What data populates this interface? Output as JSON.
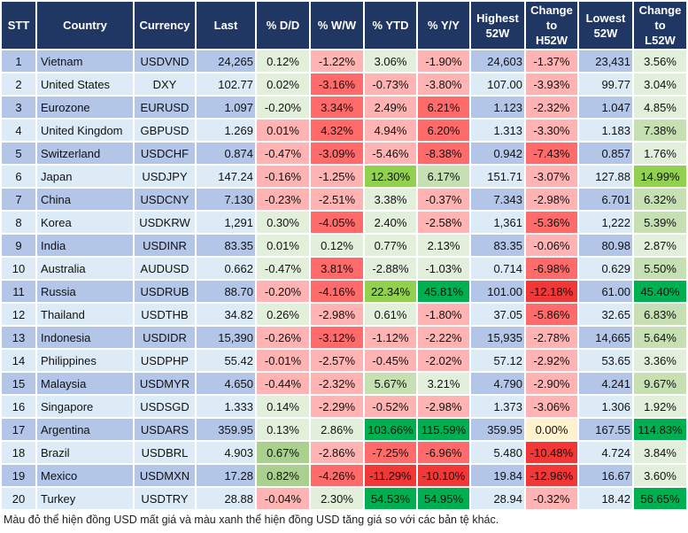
{
  "colors": {
    "header": "#203764",
    "row_odd": "#B4C6E7",
    "row_even": "#DDEBF7",
    "g1": "#E2EFDA",
    "g2": "#C6E0B4",
    "g2b": "#A9D08E",
    "g3": "#92D050",
    "g4": "#00B050",
    "r1": "#FFB3B3",
    "r2": "#FF6B6B",
    "r3": "#F23737",
    "y": "#FFF2CC"
  },
  "headers": [
    [
      "STT"
    ],
    [
      "Country"
    ],
    [
      "Currency"
    ],
    [
      "Last"
    ],
    [
      "% D/D"
    ],
    [
      "% W/W"
    ],
    [
      "% YTD"
    ],
    [
      "% Y/Y"
    ],
    [
      "Highest",
      "52W"
    ],
    [
      "Change",
      "to",
      "H52W"
    ],
    [
      "Lowest",
      "52W"
    ],
    [
      "Change",
      "to",
      "L52W"
    ]
  ],
  "rows": [
    {
      "stt": "1",
      "country": "Vietnam",
      "currency": "USDVND",
      "last": "24,265",
      "dd": "0.12%",
      "ww": "-1.22%",
      "ytd": "3.06%",
      "yy": "-1.90%",
      "high": "24,603",
      "h52": "-1.37%",
      "low": "23,431",
      "l52": "3.56%",
      "colors": [
        "g1",
        "r1",
        "g1",
        "r1",
        "r1",
        "g1"
      ]
    },
    {
      "stt": "2",
      "country": "United States",
      "currency": "DXY",
      "last": "102.77",
      "dd": "0.02%",
      "ww": "-3.16%",
      "ytd": "-0.73%",
      "yy": "-3.80%",
      "high": "107.00",
      "h52": "-3.93%",
      "low": "99.77",
      "l52": "3.04%",
      "colors": [
        "g1",
        "r2",
        "r1",
        "r1",
        "r1",
        "g1"
      ]
    },
    {
      "stt": "3",
      "country": "Eurozone",
      "currency": "EURUSD",
      "last": "1.097",
      "dd": "-0.20%",
      "ww": "3.34%",
      "ytd": "2.49%",
      "yy": "6.21%",
      "high": "1.123",
      "h52": "-2.32%",
      "low": "1.047",
      "l52": "4.85%",
      "colors": [
        "g1",
        "r2",
        "r1",
        "r2",
        "r1",
        "g1"
      ]
    },
    {
      "stt": "4",
      "country": "United Kingdom",
      "currency": "GBPUSD",
      "last": "1.269",
      "dd": "0.01%",
      "ww": "4.32%",
      "ytd": "4.94%",
      "yy": "6.20%",
      "high": "1.313",
      "h52": "-3.30%",
      "low": "1.183",
      "l52": "7.38%",
      "colors": [
        "r1",
        "r2",
        "r1",
        "r2",
        "r1",
        "g2"
      ]
    },
    {
      "stt": "5",
      "country": "Switzerland",
      "currency": "USDCHF",
      "last": "0.874",
      "dd": "-0.47%",
      "ww": "-3.09%",
      "ytd": "-5.46%",
      "yy": "-8.38%",
      "high": "0.942",
      "h52": "-7.43%",
      "low": "0.857",
      "l52": "1.76%",
      "colors": [
        "r1",
        "r2",
        "r1",
        "r2",
        "r2",
        "g1"
      ]
    },
    {
      "stt": "6",
      "country": "Japan",
      "currency": "USDJPY",
      "last": "147.24",
      "dd": "-0.16%",
      "ww": "-1.25%",
      "ytd": "12.30%",
      "yy": "6.17%",
      "high": "151.71",
      "h52": "-3.07%",
      "low": "127.88",
      "l52": "14.99%",
      "colors": [
        "r1",
        "r1",
        "g3",
        "g2",
        "r1",
        "g3"
      ]
    },
    {
      "stt": "7",
      "country": "China",
      "currency": "USDCNY",
      "last": "7.130",
      "dd": "-0.23%",
      "ww": "-2.51%",
      "ytd": "3.38%",
      "yy": "-0.37%",
      "high": "7.343",
      "h52": "-2.98%",
      "low": "6.701",
      "l52": "6.32%",
      "colors": [
        "r1",
        "r1",
        "g1",
        "r1",
        "r1",
        "g2"
      ]
    },
    {
      "stt": "8",
      "country": "Korea",
      "currency": "USDKRW",
      "last": "1,291",
      "dd": "0.30%",
      "ww": "-4.05%",
      "ytd": "2.40%",
      "yy": "-2.58%",
      "high": "1,361",
      "h52": "-5.36%",
      "low": "1,222",
      "l52": "5.39%",
      "colors": [
        "g1",
        "r2",
        "g1",
        "r1",
        "r2",
        "g2"
      ]
    },
    {
      "stt": "9",
      "country": "India",
      "currency": "USDINR",
      "last": "83.35",
      "dd": "0.01%",
      "ww": "0.12%",
      "ytd": "0.77%",
      "yy": "2.13%",
      "high": "83.35",
      "h52": "-0.06%",
      "low": "80.98",
      "l52": "2.87%",
      "colors": [
        "g1",
        "g1",
        "g1",
        "g1",
        "r1",
        "g1"
      ]
    },
    {
      "stt": "10",
      "country": "Australia",
      "currency": "AUDUSD",
      "last": "0.662",
      "dd": "-0.47%",
      "ww": "3.81%",
      "ytd": "-2.88%",
      "yy": "-1.03%",
      "high": "0.714",
      "h52": "-6.98%",
      "low": "0.629",
      "l52": "5.50%",
      "colors": [
        "g1",
        "r2",
        "g1",
        "g1",
        "r2",
        "g2"
      ]
    },
    {
      "stt": "11",
      "country": "Russia",
      "currency": "USDRUB",
      "last": "88.70",
      "dd": "-0.20%",
      "ww": "-4.16%",
      "ytd": "22.34%",
      "yy": "45.81%",
      "high": "101.00",
      "h52": "-12.18%",
      "low": "61.00",
      "l52": "45.40%",
      "colors": [
        "r1",
        "r2",
        "g3",
        "g4",
        "r3",
        "g4"
      ]
    },
    {
      "stt": "12",
      "country": "Thailand",
      "currency": "USDTHB",
      "last": "34.82",
      "dd": "0.26%",
      "ww": "-2.98%",
      "ytd": "0.61%",
      "yy": "-1.80%",
      "high": "37.05",
      "h52": "-5.86%",
      "low": "32.65",
      "l52": "6.83%",
      "colors": [
        "g1",
        "r1",
        "g1",
        "r1",
        "r2",
        "g2"
      ]
    },
    {
      "stt": "13",
      "country": "Indonesia",
      "currency": "USDIDR",
      "last": "15,390",
      "dd": "-0.26%",
      "ww": "-3.12%",
      "ytd": "-1.12%",
      "yy": "-2.22%",
      "high": "15,935",
      "h52": "-2.78%",
      "low": "14,665",
      "l52": "5.64%",
      "colors": [
        "r1",
        "r2",
        "r1",
        "r1",
        "r1",
        "g2"
      ]
    },
    {
      "stt": "14",
      "country": "Philippines",
      "currency": "USDPHP",
      "last": "55.42",
      "dd": "-0.01%",
      "ww": "-2.57%",
      "ytd": "-0.45%",
      "yy": "-2.02%",
      "high": "57.12",
      "h52": "-2.92%",
      "low": "53.65",
      "l52": "3.36%",
      "colors": [
        "r1",
        "r1",
        "r1",
        "r1",
        "r1",
        "g1"
      ]
    },
    {
      "stt": "15",
      "country": "Malaysia",
      "currency": "USDMYR",
      "last": "4.650",
      "dd": "-0.44%",
      "ww": "-2.32%",
      "ytd": "5.67%",
      "yy": "3.21%",
      "high": "4.790",
      "h52": "-2.90%",
      "low": "4.241",
      "l52": "9.67%",
      "colors": [
        "r1",
        "r1",
        "g2",
        "g1",
        "r1",
        "g2"
      ]
    },
    {
      "stt": "16",
      "country": "Singapore",
      "currency": "USDSGD",
      "last": "1.333",
      "dd": "0.14%",
      "ww": "-2.29%",
      "ytd": "-0.52%",
      "yy": "-2.98%",
      "high": "1.373",
      "h52": "-3.06%",
      "low": "1.306",
      "l52": "1.92%",
      "colors": [
        "g1",
        "r1",
        "r1",
        "r1",
        "r1",
        "g1"
      ]
    },
    {
      "stt": "17",
      "country": "Argentina",
      "currency": "USDARS",
      "last": "359.95",
      "dd": "0.13%",
      "ww": "2.86%",
      "ytd": "103.66%",
      "yy": "115.59%",
      "high": "359.95",
      "h52": "0.00%",
      "low": "167.55",
      "l52": "114.83%",
      "colors": [
        "g1",
        "g1",
        "g4",
        "g4",
        "y",
        "g4"
      ]
    },
    {
      "stt": "18",
      "country": "Brazil",
      "currency": "USDBRL",
      "last": "4.903",
      "dd": "0.67%",
      "ww": "-2.86%",
      "ytd": "-7.25%",
      "yy": "-6.96%",
      "high": "5.480",
      "h52": "-10.48%",
      "low": "4.724",
      "l52": "3.84%",
      "colors": [
        "g2b",
        "r1",
        "r2",
        "r2",
        "r3",
        "g1"
      ]
    },
    {
      "stt": "19",
      "country": "Mexico",
      "currency": "USDMXN",
      "last": "17.28",
      "dd": "0.82%",
      "ww": "-4.26%",
      "ytd": "-11.29%",
      "yy": "-10.10%",
      "high": "19.84",
      "h52": "-12.96%",
      "low": "16.67",
      "l52": "3.60%",
      "colors": [
        "g2b",
        "r2",
        "r3",
        "r3",
        "r3",
        "g1"
      ]
    },
    {
      "stt": "20",
      "country": "Turkey",
      "currency": "USDTRY",
      "last": "28.88",
      "dd": "-0.04%",
      "ww": "2.30%",
      "ytd": "54.53%",
      "yy": "54.95%",
      "high": "28.94",
      "h52": "-0.32%",
      "low": "18.42",
      "l52": "56.65%",
      "colors": [
        "r1",
        "g1",
        "g4",
        "g4",
        "r1",
        "g4"
      ]
    }
  ],
  "footnote": "Màu đỏ thể hiện đồng USD mất giá và màu xanh thể hiện đồng USD tăng giá so với các bản tệ khác."
}
